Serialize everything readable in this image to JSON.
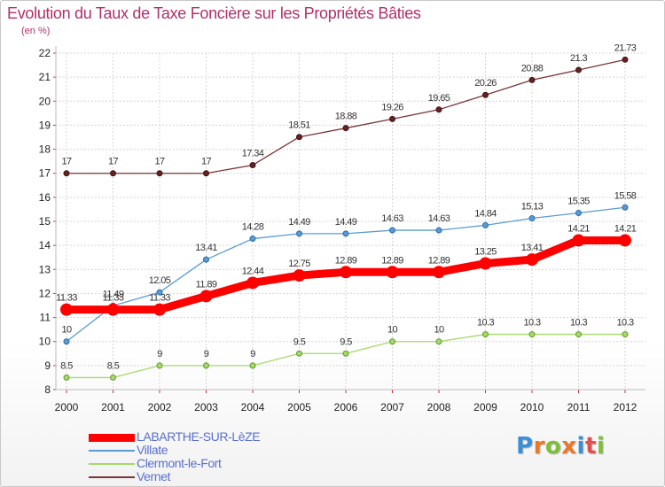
{
  "title": "Evolution du Taux de Taxe Foncière sur les Propriétés Bâties",
  "unit": "(en %)",
  "logo": {
    "text": "Proxiti",
    "letter_colors": [
      "#3b8fd6",
      "#e8792a",
      "#7fbf3a",
      "#e8792a",
      "#3b8fd6",
      "#e05050",
      "#7fbf3a"
    ]
  },
  "chart_data": {
    "type": "line",
    "title": "Evolution du Taux de Taxe Foncière sur les Propriétés Bâties",
    "ylabel": "(en %)",
    "xlabel": "",
    "x": [
      "2000",
      "2001",
      "2002",
      "2003",
      "2004",
      "2005",
      "2006",
      "2007",
      "2008",
      "2009",
      "2010",
      "2011",
      "2012"
    ],
    "ylim": [
      8,
      22
    ],
    "yticks": [
      "8",
      "9",
      "10",
      "11",
      "12",
      "13",
      "14",
      "15",
      "16",
      "17",
      "18",
      "19",
      "20",
      "21",
      "22"
    ],
    "grid": true,
    "legend": "bottom-left",
    "series": [
      {
        "name": "LABARTHE-SUR-LèZE",
        "color": "#ff0000",
        "values": [
          11.33,
          11.33,
          11.33,
          11.89,
          12.44,
          12.75,
          12.89,
          12.89,
          12.89,
          13.25,
          13.41,
          14.21,
          14.21
        ],
        "labels": [
          "11.33",
          "11.33",
          "11.33",
          "11.89",
          "12.44",
          "12.75",
          "12.89",
          "12.89",
          "12.89",
          "13.25",
          "13.41",
          "14.21",
          "14.21"
        ]
      },
      {
        "name": "Villate",
        "color": "#5b9bd5",
        "values": [
          10,
          11.49,
          12.05,
          13.41,
          14.28,
          14.49,
          14.49,
          14.63,
          14.63,
          14.84,
          15.13,
          15.35,
          15.58
        ],
        "labels": [
          "10",
          "11.49",
          "12.05",
          "13.41",
          "14.28",
          "14.49",
          "14.49",
          "14.63",
          "14.63",
          "14.84",
          "15.13",
          "15.35",
          "15.58"
        ]
      },
      {
        "name": "Clermont-le-Fort",
        "color": "#a6d96a",
        "values": [
          8.5,
          8.5,
          9,
          9,
          9,
          9.5,
          9.5,
          10,
          10,
          10.3,
          10.3,
          10.3,
          10.3
        ],
        "labels": [
          "8.5",
          "8.5",
          "9",
          "9",
          "9",
          "9.5",
          "9.5",
          "10",
          "10",
          "10.3",
          "10.3",
          "10.3",
          "10.3"
        ]
      },
      {
        "name": "Vernet",
        "color": "#7a3535",
        "values": [
          17,
          17,
          17,
          17,
          17.34,
          18.51,
          18.88,
          19.26,
          19.65,
          20.26,
          20.88,
          21.3,
          21.73
        ],
        "labels": [
          "17",
          "17",
          "17",
          "17",
          "17.34",
          "18.51",
          "18.88",
          "19.26",
          "19.65",
          "20.26",
          "20.88",
          "21.3",
          "21.73"
        ]
      }
    ]
  }
}
